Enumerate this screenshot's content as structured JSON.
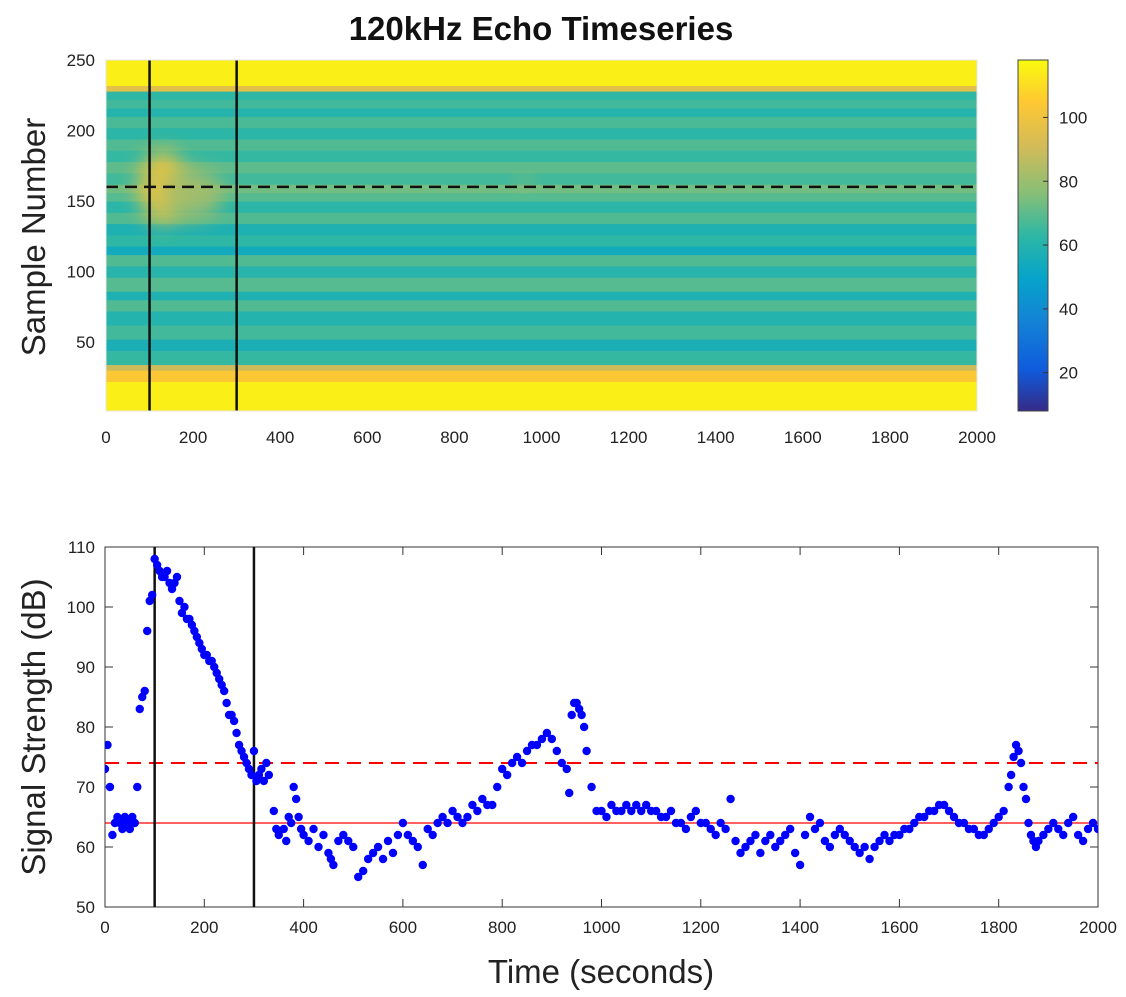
{
  "chart_data": [
    {
      "type": "heatmap",
      "title": "120kHz Echo Timeseries",
      "xlabel": "",
      "ylabel": "Sample Number",
      "xlim": [
        0,
        2000
      ],
      "ylim": [
        1,
        250
      ],
      "xticks": [
        0,
        200,
        400,
        600,
        800,
        1000,
        1200,
        1400,
        1600,
        1800,
        2000
      ],
      "yticks": [
        50,
        100,
        150,
        200,
        250
      ],
      "colorbar": {
        "colormap": "parula",
        "range": [
          8,
          118
        ],
        "ticks": [
          20,
          40,
          60,
          80,
          100
        ]
      },
      "bands": [
        {
          "y0": 0,
          "y1": 22,
          "value": 115
        },
        {
          "y0": 22,
          "y1": 30,
          "value": 104
        },
        {
          "y0": 30,
          "y1": 34,
          "value": 90
        },
        {
          "y0": 34,
          "y1": 44,
          "value": 64
        },
        {
          "y0": 44,
          "y1": 52,
          "value": 57
        },
        {
          "y0": 52,
          "y1": 62,
          "value": 66
        },
        {
          "y0": 62,
          "y1": 72,
          "value": 60
        },
        {
          "y0": 72,
          "y1": 80,
          "value": 68
        },
        {
          "y0": 80,
          "y1": 86,
          "value": 58
        },
        {
          "y0": 86,
          "y1": 96,
          "value": 69
        },
        {
          "y0": 96,
          "y1": 104,
          "value": 61
        },
        {
          "y0": 104,
          "y1": 112,
          "value": 68
        },
        {
          "y0": 112,
          "y1": 118,
          "value": 54
        },
        {
          "y0": 118,
          "y1": 126,
          "value": 63
        },
        {
          "y0": 126,
          "y1": 134,
          "value": 58
        },
        {
          "y0": 134,
          "y1": 142,
          "value": 68
        },
        {
          "y0": 142,
          "y1": 150,
          "value": 62
        },
        {
          "y0": 150,
          "y1": 156,
          "value": 69
        },
        {
          "y0": 156,
          "y1": 162,
          "value": 73
        },
        {
          "y0": 162,
          "y1": 170,
          "value": 66
        },
        {
          "y0": 170,
          "y1": 178,
          "value": 70
        },
        {
          "y0": 178,
          "y1": 186,
          "value": 64
        },
        {
          "y0": 186,
          "y1": 194,
          "value": 68
        },
        {
          "y0": 194,
          "y1": 202,
          "value": 62
        },
        {
          "y0": 202,
          "y1": 210,
          "value": 67
        },
        {
          "y0": 210,
          "y1": 216,
          "value": 60
        },
        {
          "y0": 216,
          "y1": 222,
          "value": 66
        },
        {
          "y0": 222,
          "y1": 228,
          "value": 63
        },
        {
          "y0": 228,
          "y1": 232,
          "value": 96
        },
        {
          "y0": 232,
          "y1": 250,
          "value": 115
        }
      ],
      "blobs": [
        {
          "x": 130,
          "y": 160,
          "rx": 55,
          "ry": 26,
          "value": 100
        },
        {
          "x": 200,
          "y": 155,
          "rx": 70,
          "ry": 18,
          "value": 82
        },
        {
          "x": 960,
          "y": 163,
          "rx": 18,
          "ry": 4,
          "value": 80
        }
      ],
      "vlines": [
        100,
        300
      ],
      "hline": 160
    },
    {
      "type": "scatter",
      "title": "",
      "xlabel": "Time (seconds)",
      "ylabel": "Signal Strength (dB)",
      "xlim": [
        0,
        2000
      ],
      "ylim": [
        50,
        110
      ],
      "xticks": [
        0,
        200,
        400,
        600,
        800,
        1000,
        1200,
        1400,
        1600,
        1800,
        2000
      ],
      "yticks": [
        50,
        60,
        70,
        80,
        90,
        100,
        110
      ],
      "vlines": [
        100,
        300
      ],
      "hlines": [
        {
          "y": 74,
          "style": "dashed",
          "color": "#ff0000"
        },
        {
          "y": 64,
          "style": "solid",
          "color": "#ff0000"
        }
      ],
      "point_color": "#0000ff",
      "points": [
        [
          0,
          73
        ],
        [
          5,
          77
        ],
        [
          10,
          70
        ],
        [
          15,
          62
        ],
        [
          20,
          64
        ],
        [
          25,
          65
        ],
        [
          30,
          64
        ],
        [
          35,
          63
        ],
        [
          40,
          65
        ],
        [
          45,
          64
        ],
        [
          50,
          63
        ],
        [
          55,
          65
        ],
        [
          60,
          64
        ],
        [
          65,
          70
        ],
        [
          70,
          83
        ],
        [
          75,
          85
        ],
        [
          80,
          86
        ],
        [
          85,
          96
        ],
        [
          90,
          101
        ],
        [
          95,
          102
        ],
        [
          100,
          108
        ],
        [
          105,
          107
        ],
        [
          110,
          106
        ],
        [
          115,
          105
        ],
        [
          120,
          105
        ],
        [
          125,
          106
        ],
        [
          130,
          104
        ],
        [
          135,
          103
        ],
        [
          140,
          104
        ],
        [
          145,
          105
        ],
        [
          150,
          101
        ],
        [
          155,
          99
        ],
        [
          160,
          100
        ],
        [
          165,
          98
        ],
        [
          170,
          98
        ],
        [
          175,
          97
        ],
        [
          180,
          96
        ],
        [
          185,
          95
        ],
        [
          190,
          94
        ],
        [
          195,
          93
        ],
        [
          200,
          92
        ],
        [
          205,
          92
        ],
        [
          210,
          91
        ],
        [
          215,
          91
        ],
        [
          220,
          90
        ],
        [
          225,
          89
        ],
        [
          230,
          88
        ],
        [
          235,
          87
        ],
        [
          240,
          86
        ],
        [
          245,
          84
        ],
        [
          250,
          82
        ],
        [
          255,
          82
        ],
        [
          260,
          81
        ],
        [
          265,
          79
        ],
        [
          270,
          77
        ],
        [
          275,
          76
        ],
        [
          280,
          75
        ],
        [
          285,
          74
        ],
        [
          290,
          73
        ],
        [
          295,
          72
        ],
        [
          300,
          76
        ],
        [
          305,
          71
        ],
        [
          310,
          72
        ],
        [
          315,
          73
        ],
        [
          320,
          71
        ],
        [
          325,
          74
        ],
        [
          330,
          72
        ],
        [
          340,
          66
        ],
        [
          345,
          63
        ],
        [
          350,
          62
        ],
        [
          360,
          63
        ],
        [
          365,
          61
        ],
        [
          370,
          65
        ],
        [
          375,
          64
        ],
        [
          380,
          70
        ],
        [
          385,
          68
        ],
        [
          390,
          65
        ],
        [
          395,
          63
        ],
        [
          400,
          62
        ],
        [
          410,
          61
        ],
        [
          420,
          63
        ],
        [
          430,
          60
        ],
        [
          440,
          62
        ],
        [
          450,
          59
        ],
        [
          455,
          58
        ],
        [
          460,
          57
        ],
        [
          470,
          61
        ],
        [
          480,
          62
        ],
        [
          490,
          61
        ],
        [
          500,
          60
        ],
        [
          510,
          55
        ],
        [
          520,
          56
        ],
        [
          530,
          58
        ],
        [
          540,
          59
        ],
        [
          550,
          60
        ],
        [
          560,
          58
        ],
        [
          570,
          61
        ],
        [
          580,
          59
        ],
        [
          590,
          62
        ],
        [
          600,
          64
        ],
        [
          610,
          62
        ],
        [
          620,
          61
        ],
        [
          630,
          60
        ],
        [
          640,
          57
        ],
        [
          650,
          63
        ],
        [
          660,
          62
        ],
        [
          670,
          64
        ],
        [
          680,
          65
        ],
        [
          690,
          64
        ],
        [
          700,
          66
        ],
        [
          710,
          65
        ],
        [
          720,
          64
        ],
        [
          730,
          65
        ],
        [
          740,
          67
        ],
        [
          750,
          66
        ],
        [
          760,
          68
        ],
        [
          770,
          67
        ],
        [
          780,
          67
        ],
        [
          790,
          70
        ],
        [
          800,
          73
        ],
        [
          810,
          72
        ],
        [
          820,
          74
        ],
        [
          830,
          75
        ],
        [
          840,
          74
        ],
        [
          850,
          76
        ],
        [
          860,
          77
        ],
        [
          870,
          77
        ],
        [
          880,
          78
        ],
        [
          890,
          79
        ],
        [
          900,
          78
        ],
        [
          910,
          76
        ],
        [
          920,
          74
        ],
        [
          930,
          73
        ],
        [
          935,
          69
        ],
        [
          940,
          82
        ],
        [
          945,
          84
        ],
        [
          950,
          84
        ],
        [
          955,
          83
        ],
        [
          960,
          82
        ],
        [
          965,
          80
        ],
        [
          970,
          76
        ],
        [
          980,
          70
        ],
        [
          990,
          66
        ],
        [
          1000,
          66
        ],
        [
          1010,
          65
        ],
        [
          1020,
          67
        ],
        [
          1030,
          66
        ],
        [
          1040,
          66
        ],
        [
          1050,
          67
        ],
        [
          1060,
          66
        ],
        [
          1070,
          67
        ],
        [
          1080,
          66
        ],
        [
          1090,
          67
        ],
        [
          1100,
          66
        ],
        [
          1110,
          66
        ],
        [
          1120,
          65
        ],
        [
          1130,
          65
        ],
        [
          1140,
          66
        ],
        [
          1150,
          64
        ],
        [
          1160,
          64
        ],
        [
          1170,
          63
        ],
        [
          1180,
          65
        ],
        [
          1190,
          66
        ],
        [
          1200,
          64
        ],
        [
          1210,
          64
        ],
        [
          1220,
          63
        ],
        [
          1230,
          62
        ],
        [
          1240,
          64
        ],
        [
          1250,
          63
        ],
        [
          1260,
          68
        ],
        [
          1270,
          61
        ],
        [
          1280,
          59
        ],
        [
          1290,
          60
        ],
        [
          1300,
          61
        ],
        [
          1310,
          62
        ],
        [
          1320,
          59
        ],
        [
          1330,
          61
        ],
        [
          1340,
          62
        ],
        [
          1350,
          60
        ],
        [
          1360,
          61
        ],
        [
          1370,
          62
        ],
        [
          1380,
          63
        ],
        [
          1390,
          59
        ],
        [
          1400,
          57
        ],
        [
          1410,
          62
        ],
        [
          1420,
          65
        ],
        [
          1430,
          63
        ],
        [
          1440,
          64
        ],
        [
          1450,
          61
        ],
        [
          1460,
          60
        ],
        [
          1470,
          62
        ],
        [
          1480,
          63
        ],
        [
          1490,
          62
        ],
        [
          1500,
          61
        ],
        [
          1510,
          60
        ],
        [
          1520,
          59
        ],
        [
          1530,
          60
        ],
        [
          1540,
          58
        ],
        [
          1550,
          60
        ],
        [
          1560,
          61
        ],
        [
          1570,
          62
        ],
        [
          1580,
          61
        ],
        [
          1590,
          62
        ],
        [
          1600,
          62
        ],
        [
          1610,
          63
        ],
        [
          1620,
          63
        ],
        [
          1630,
          64
        ],
        [
          1640,
          65
        ],
        [
          1650,
          65
        ],
        [
          1660,
          66
        ],
        [
          1670,
          66
        ],
        [
          1680,
          67
        ],
        [
          1690,
          67
        ],
        [
          1700,
          66
        ],
        [
          1710,
          65
        ],
        [
          1720,
          64
        ],
        [
          1730,
          64
        ],
        [
          1740,
          63
        ],
        [
          1750,
          63
        ],
        [
          1760,
          62
        ],
        [
          1770,
          62
        ],
        [
          1780,
          63
        ],
        [
          1790,
          64
        ],
        [
          1800,
          65
        ],
        [
          1810,
          66
        ],
        [
          1820,
          70
        ],
        [
          1825,
          72
        ],
        [
          1830,
          75
        ],
        [
          1835,
          77
        ],
        [
          1840,
          76
        ],
        [
          1845,
          74
        ],
        [
          1850,
          70
        ],
        [
          1855,
          68
        ],
        [
          1860,
          64
        ],
        [
          1865,
          62
        ],
        [
          1870,
          61
        ],
        [
          1875,
          60
        ],
        [
          1880,
          61
        ],
        [
          1890,
          62
        ],
        [
          1900,
          63
        ],
        [
          1910,
          64
        ],
        [
          1920,
          63
        ],
        [
          1930,
          62
        ],
        [
          1940,
          64
        ],
        [
          1950,
          65
        ],
        [
          1960,
          62
        ],
        [
          1970,
          61
        ],
        [
          1980,
          63
        ],
        [
          1990,
          64
        ],
        [
          2000,
          63
        ]
      ]
    }
  ]
}
